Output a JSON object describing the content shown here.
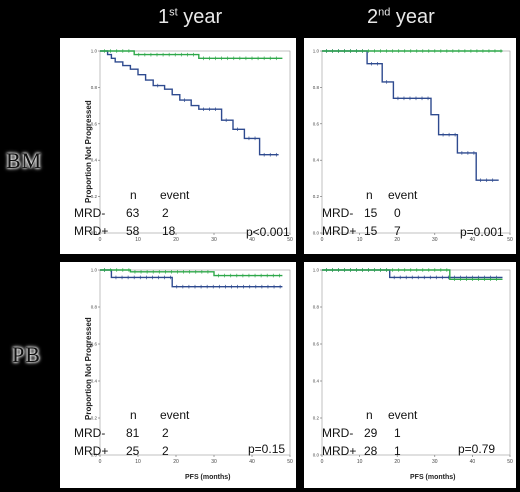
{
  "headers": {
    "col1": {
      "base": "1",
      "sup": "st",
      "rest": " year"
    },
    "col2": {
      "base": "2",
      "sup": "nd",
      "rest": " year"
    }
  },
  "rows": {
    "bm": "BM",
    "pb": "PB"
  },
  "table_header": {
    "n": "n",
    "event": "event"
  },
  "axis_text": {
    "ylabel": "Proportion Not Progressed",
    "xlabel": "PFS (months)"
  },
  "colors": {
    "mrd_neg": "#2fa84a",
    "mrd_pos": "#2e4a8f"
  },
  "chart_data": [
    {
      "type": "line",
      "id": "bm_year1",
      "ylabel": "Proportion Not Progressed",
      "xlim": [
        0,
        50
      ],
      "ylim": [
        0,
        1
      ],
      "xticks": [
        0,
        10,
        20,
        30,
        40,
        50
      ],
      "yticks": [
        "0.0",
        "0.2",
        "0.4",
        "0.6",
        "0.8",
        "1.0"
      ],
      "series": [
        {
          "name": "MRD-",
          "n": "63",
          "event": "2",
          "steps": [
            [
              0,
              1
            ],
            [
              9,
              1
            ],
            [
              9,
              0.98
            ],
            [
              26,
              0.98
            ],
            [
              26,
              0.96
            ],
            [
              48,
              0.96
            ]
          ]
        },
        {
          "name": "MRD+",
          "n": "58",
          "event": "18",
          "steps": [
            [
              0,
              1
            ],
            [
              2,
              1
            ],
            [
              2,
              0.98
            ],
            [
              3,
              0.98
            ],
            [
              3,
              0.96
            ],
            [
              4,
              0.96
            ],
            [
              4,
              0.94
            ],
            [
              6,
              0.94
            ],
            [
              6,
              0.92
            ],
            [
              8,
              0.92
            ],
            [
              8,
              0.9
            ],
            [
              10,
              0.9
            ],
            [
              10,
              0.87
            ],
            [
              12,
              0.87
            ],
            [
              12,
              0.84
            ],
            [
              14,
              0.84
            ],
            [
              14,
              0.81
            ],
            [
              17,
              0.81
            ],
            [
              17,
              0.79
            ],
            [
              19,
              0.79
            ],
            [
              19,
              0.76
            ],
            [
              21,
              0.76
            ],
            [
              21,
              0.73
            ],
            [
              24,
              0.73
            ],
            [
              24,
              0.7
            ],
            [
              26,
              0.7
            ],
            [
              26,
              0.68
            ],
            [
              32,
              0.68
            ],
            [
              32,
              0.62
            ],
            [
              35,
              0.62
            ],
            [
              35,
              0.57
            ],
            [
              38,
              0.57
            ],
            [
              38,
              0.52
            ],
            [
              42,
              0.52
            ],
            [
              42,
              0.43
            ],
            [
              47,
              0.43
            ]
          ]
        }
      ],
      "p_value": "p<0.001"
    },
    {
      "type": "line",
      "id": "bm_year2",
      "xlim": [
        0,
        50
      ],
      "ylim": [
        0,
        1
      ],
      "xticks": [
        0,
        10,
        20,
        30,
        40,
        50
      ],
      "yticks": [
        "0.0",
        "0.2",
        "0.4",
        "0.6",
        "0.8",
        "1.0"
      ],
      "series": [
        {
          "name": "MRD-",
          "n": "15",
          "event": "0",
          "steps": [
            [
              0,
              1
            ],
            [
              48,
              1
            ]
          ]
        },
        {
          "name": "MRD+",
          "n": "15",
          "event": "7",
          "steps": [
            [
              0,
              1
            ],
            [
              12,
              1
            ],
            [
              12,
              0.93
            ],
            [
              16,
              0.93
            ],
            [
              16,
              0.83
            ],
            [
              19,
              0.83
            ],
            [
              19,
              0.74
            ],
            [
              29,
              0.74
            ],
            [
              29,
              0.65
            ],
            [
              31,
              0.65
            ],
            [
              31,
              0.54
            ],
            [
              36,
              0.54
            ],
            [
              36,
              0.44
            ],
            [
              41,
              0.44
            ],
            [
              41,
              0.29
            ],
            [
              47,
              0.29
            ]
          ]
        }
      ],
      "p_value": "p=0.001"
    },
    {
      "type": "line",
      "id": "pb_year1",
      "ylabel": "Proportion Not Progressed",
      "xlabel": "PFS (months)",
      "xlim": [
        0,
        50
      ],
      "ylim": [
        0,
        1
      ],
      "xticks": [
        0,
        10,
        20,
        30,
        40,
        50
      ],
      "yticks": [
        "0.0",
        "0.2",
        "0.4",
        "0.6",
        "0.8",
        "1.0"
      ],
      "series": [
        {
          "name": "MRD-",
          "n": "81",
          "event": "2",
          "steps": [
            [
              0,
              1
            ],
            [
              8,
              1
            ],
            [
              8,
              0.99
            ],
            [
              30,
              0.99
            ],
            [
              30,
              0.97
            ],
            [
              48,
              0.97
            ]
          ]
        },
        {
          "name": "MRD+",
          "n": "25",
          "event": "2",
          "steps": [
            [
              0,
              1
            ],
            [
              3,
              1
            ],
            [
              3,
              0.96
            ],
            [
              19,
              0.96
            ],
            [
              19,
              0.91
            ],
            [
              48,
              0.91
            ]
          ]
        }
      ],
      "p_value": "p=0.15"
    },
    {
      "type": "line",
      "id": "pb_year2",
      "xlabel": "PFS (months)",
      "xlim": [
        0,
        50
      ],
      "ylim": [
        0,
        1
      ],
      "xticks": [
        0,
        10,
        20,
        30,
        40,
        50
      ],
      "yticks": [
        "0.0",
        "0.2",
        "0.4",
        "0.6",
        "0.8",
        "1.0"
      ],
      "series": [
        {
          "name": "MRD-",
          "n": "29",
          "event": "1",
          "steps": [
            [
              0,
              1
            ],
            [
              34,
              1
            ],
            [
              34,
              0.95
            ],
            [
              48,
              0.95
            ]
          ]
        },
        {
          "name": "MRD+",
          "n": "28",
          "event": "1",
          "steps": [
            [
              0,
              1
            ],
            [
              18,
              1
            ],
            [
              18,
              0.96
            ],
            [
              48,
              0.96
            ]
          ]
        }
      ],
      "p_value": "p=0.79"
    }
  ]
}
